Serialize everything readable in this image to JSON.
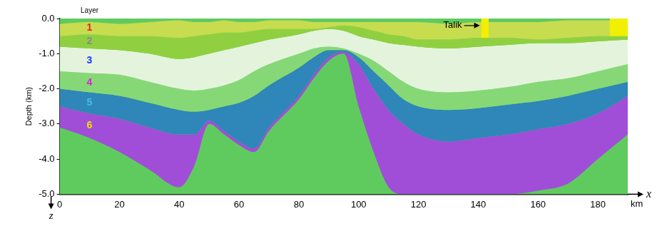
{
  "chart_data": {
    "type": "area",
    "legend_title": "Layer",
    "x_label": "x",
    "x_unit": "km",
    "y_label": "Depth (km)",
    "z_label": "z",
    "x": [
      0,
      10,
      20,
      30,
      40,
      45,
      50,
      55,
      60,
      65,
      70,
      80,
      85,
      90,
      95,
      100,
      105,
      110,
      115,
      120,
      130,
      140,
      150,
      160,
      170,
      180,
      190
    ],
    "surface": [
      -0.15,
      -0.1,
      -0.15,
      -0.1,
      -0.05,
      -0.1,
      -0.1,
      -0.05,
      -0.1,
      -0.1,
      -0.05,
      -0.05,
      -0.1,
      -0.1,
      -0.1,
      -0.1,
      -0.1,
      -0.1,
      -0.1,
      -0.1,
      -0.15,
      -0.1,
      -0.1,
      -0.1,
      -0.05,
      -0.05,
      -0.05
    ],
    "series": [
      {
        "name": "1",
        "color": "#e8202a",
        "values": [
          -0.5,
          -0.45,
          -0.5,
          -0.5,
          -0.55,
          -0.5,
          -0.45,
          -0.4,
          -0.4,
          -0.35,
          -0.3,
          -0.3,
          -0.3,
          -0.25,
          -0.2,
          -0.25,
          -0.35,
          -0.45,
          -0.5,
          -0.6,
          -0.6,
          -0.55,
          -0.55,
          -0.6,
          -0.55,
          -0.5,
          -0.5
        ]
      },
      {
        "name": "2",
        "color": "#8a8a8a",
        "values": [
          -0.8,
          -0.85,
          -0.9,
          -1.0,
          -1.15,
          -1.1,
          -1.0,
          -0.9,
          -0.8,
          -0.7,
          -0.6,
          -0.45,
          -0.35,
          -0.3,
          -0.35,
          -0.5,
          -0.6,
          -0.7,
          -0.75,
          -0.8,
          -0.85,
          -0.8,
          -0.75,
          -0.7,
          -0.7,
          -0.65,
          -0.6
        ]
      },
      {
        "name": "3",
        "color": "#1a3cff",
        "values": [
          -1.5,
          -1.55,
          -1.6,
          -1.8,
          -2.0,
          -2.05,
          -2.0,
          -1.9,
          -1.75,
          -1.5,
          -1.3,
          -1.0,
          -0.85,
          -0.8,
          -0.85,
          -1.0,
          -1.2,
          -1.5,
          -1.8,
          -2.0,
          -2.1,
          -2.05,
          -1.95,
          -1.8,
          -1.7,
          -1.5,
          -1.3
        ]
      },
      {
        "name": "4",
        "color": "#e020e0",
        "values": [
          -2.0,
          -2.1,
          -2.2,
          -2.4,
          -2.6,
          -2.65,
          -2.6,
          -2.5,
          -2.4,
          -2.2,
          -1.9,
          -1.4,
          -1.1,
          -0.9,
          -0.9,
          -1.1,
          -1.5,
          -1.9,
          -2.3,
          -2.5,
          -2.6,
          -2.55,
          -2.45,
          -2.35,
          -2.2,
          -2.0,
          -1.8
        ]
      },
      {
        "name": "5",
        "color": "#40c0e0",
        "values": [
          -2.5,
          -2.7,
          -2.85,
          -3.1,
          -3.3,
          -3.3,
          -2.9,
          -3.2,
          -3.5,
          -3.7,
          -3.1,
          -2.2,
          -1.6,
          -1.1,
          -0.95,
          -1.3,
          -2.0,
          -2.6,
          -3.0,
          -3.3,
          -3.5,
          -3.4,
          -3.3,
          -3.15,
          -3.0,
          -2.7,
          -2.2
        ]
      },
      {
        "name": "6",
        "color": "#f0e000",
        "values": [
          -3.1,
          -3.4,
          -3.8,
          -4.3,
          -4.8,
          -4.2,
          -3.0,
          -3.3,
          -3.6,
          -3.8,
          -3.2,
          -2.3,
          -1.7,
          -1.2,
          -1.0,
          -2.5,
          -3.8,
          -4.8,
          -5.0,
          -5.0,
          -5.0,
          -5.0,
          -5.0,
          -4.9,
          -4.7,
          -4.0,
          -3.3
        ]
      }
    ],
    "zones": [
      {
        "x": [
          141,
          143.5
        ],
        "y": [
          -0.55,
          0
        ],
        "color": "#f0f000"
      },
      {
        "x": [
          184,
          190
        ],
        "y": [
          -0.5,
          0
        ],
        "color": "#f0f000"
      }
    ],
    "annotations": [
      {
        "text": "Talik",
        "x": 141,
        "y": -0.2
      }
    ],
    "xlim": [
      0,
      190
    ],
    "xticks": [
      0,
      20,
      40,
      60,
      80,
      100,
      120,
      140,
      160,
      180
    ],
    "ylim": [
      -5,
      0
    ],
    "yticks": [
      {
        "value": -5,
        "label": "-5.0"
      },
      {
        "value": -4,
        "label": "-4.0"
      },
      {
        "value": -3,
        "label": "-3.0"
      },
      {
        "value": -2,
        "label": "-2.0"
      },
      {
        "value": -1,
        "label": "-1.0"
      },
      {
        "value": 0,
        "label": "0.0"
      }
    ],
    "legend": "upper left",
    "grid": false
  }
}
